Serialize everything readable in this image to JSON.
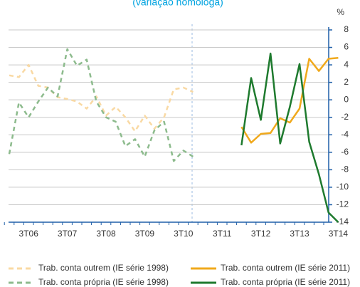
{
  "chart_data": {
    "type": "line",
    "title": "(variação homóloga)",
    "y_unit": "%",
    "categories": [
      null,
      null,
      "3T06",
      null,
      null,
      null,
      "3T07",
      null,
      null,
      null,
      "3T08",
      null,
      null,
      null,
      "3T09",
      null,
      null,
      null,
      "3T10",
      null,
      null,
      null,
      "3T11",
      null,
      null,
      null,
      "3T12",
      null,
      null,
      null,
      "3T13",
      null,
      null,
      null,
      "3T14"
    ],
    "series": [
      {
        "name": "Trab. conta outrem (IE série 1998)",
        "color": "#f9d9a3",
        "style": "dashed",
        "values": [
          2.8,
          2.6,
          4.0,
          1.6,
          1.4,
          0.3,
          0.1,
          -0.2,
          -1.0,
          0.4,
          -1.8,
          -0.8,
          -2.0,
          -3.6,
          -1.8,
          -3.3,
          -2.0,
          1.2,
          1.4,
          0.9,
          null,
          null,
          null,
          null,
          null,
          null,
          null,
          null,
          null,
          null,
          null,
          null,
          null,
          null,
          null
        ]
      },
      {
        "name": "Trab. conta outrem (IE série 2011)",
        "color": "#f0a91c",
        "style": "solid",
        "values": [
          null,
          null,
          null,
          null,
          null,
          null,
          null,
          null,
          null,
          null,
          null,
          null,
          null,
          null,
          null,
          null,
          null,
          null,
          null,
          null,
          null,
          null,
          null,
          null,
          -3.1,
          -4.9,
          -3.9,
          -3.8,
          -2.1,
          -2.6,
          -1.0,
          4.7,
          3.3,
          4.7,
          4.8
        ]
      },
      {
        "name": "Trab. conta própria (IE série 1998)",
        "color": "#8dbb8d",
        "style": "dashed",
        "values": [
          -6.2,
          -0.3,
          -2.0,
          -0.2,
          1.4,
          0.4,
          5.8,
          3.9,
          4.6,
          -0.2,
          -2.0,
          -2.5,
          -5.3,
          -4.5,
          -6.5,
          -3.5,
          -2.5,
          -7.0,
          -5.8,
          -6.5,
          null,
          null,
          null,
          null,
          null,
          null,
          null,
          null,
          null,
          null,
          null,
          null,
          null,
          null,
          null
        ]
      },
      {
        "name": "Trab. conta própria (IE série 2011)",
        "color": "#1e7a2e",
        "style": "solid",
        "values": [
          null,
          null,
          null,
          null,
          null,
          null,
          null,
          null,
          null,
          null,
          null,
          null,
          null,
          null,
          null,
          null,
          null,
          null,
          null,
          null,
          null,
          null,
          null,
          null,
          -5.2,
          2.5,
          -2.3,
          5.3,
          -5.0,
          -0.8,
          4.1,
          -4.8,
          -8.5,
          -12.9,
          -14.0
        ]
      }
    ],
    "ylim": [
      -14,
      8
    ],
    "yticks": [
      -14,
      -12,
      -10,
      -8,
      -6,
      -4,
      -2,
      0,
      2,
      4,
      6,
      8
    ],
    "grid": true
  }
}
